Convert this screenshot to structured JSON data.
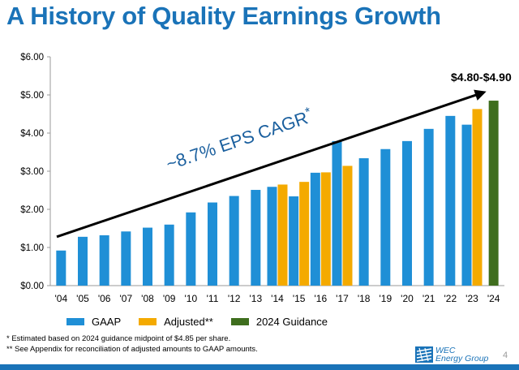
{
  "title": "A History of Quality Earnings Growth",
  "chart_data": {
    "type": "bar",
    "categories": [
      "'04",
      "'05",
      "'06",
      "'07",
      "'08",
      "'09",
      "'10",
      "'11",
      "'12",
      "'13",
      "'14",
      "'15",
      "'16",
      "'17",
      "'18",
      "'19",
      "'20",
      "'21",
      "'22",
      "'23",
      "'24"
    ],
    "series": [
      {
        "name": "GAAP",
        "color": "#1f8fd6",
        "values": [
          0.92,
          1.28,
          1.32,
          1.42,
          1.52,
          1.6,
          1.92,
          2.18,
          2.35,
          2.51,
          2.59,
          2.34,
          2.96,
          3.79,
          3.34,
          3.58,
          3.79,
          4.11,
          4.45,
          4.22,
          null
        ]
      },
      {
        "name": "Adjusted**",
        "color": "#f4aa00",
        "values": [
          null,
          null,
          null,
          null,
          null,
          null,
          null,
          null,
          null,
          null,
          2.65,
          2.72,
          2.97,
          3.14,
          null,
          null,
          null,
          null,
          null,
          4.63,
          null
        ]
      },
      {
        "name": "2024 Guidance",
        "color": "#3f6e1e",
        "values": [
          null,
          null,
          null,
          null,
          null,
          null,
          null,
          null,
          null,
          null,
          null,
          null,
          null,
          null,
          null,
          null,
          null,
          null,
          null,
          null,
          4.85
        ]
      }
    ],
    "ylim": [
      0,
      6
    ],
    "y_ticks": [
      "$0.00",
      "$1.00",
      "$2.00",
      "$3.00",
      "$4.00",
      "$5.00",
      "$6.00"
    ],
    "trend": {
      "label": "~8.7% EPS CAGR",
      "label_superscript": "*",
      "from_value": 1.28,
      "to_value": 5.05
    },
    "guidance_label": "$4.80-$4.90",
    "grid": false,
    "legend_position": "bottom"
  },
  "footnotes": [
    "* Estimated based on 2024 guidance midpoint of $4.85 per share.",
    "** See Appendix for reconciliation of adjusted amounts to GAAP amounts."
  ],
  "logo": {
    "line1": "WEC",
    "line2": "Energy Group"
  },
  "page_number": "4"
}
